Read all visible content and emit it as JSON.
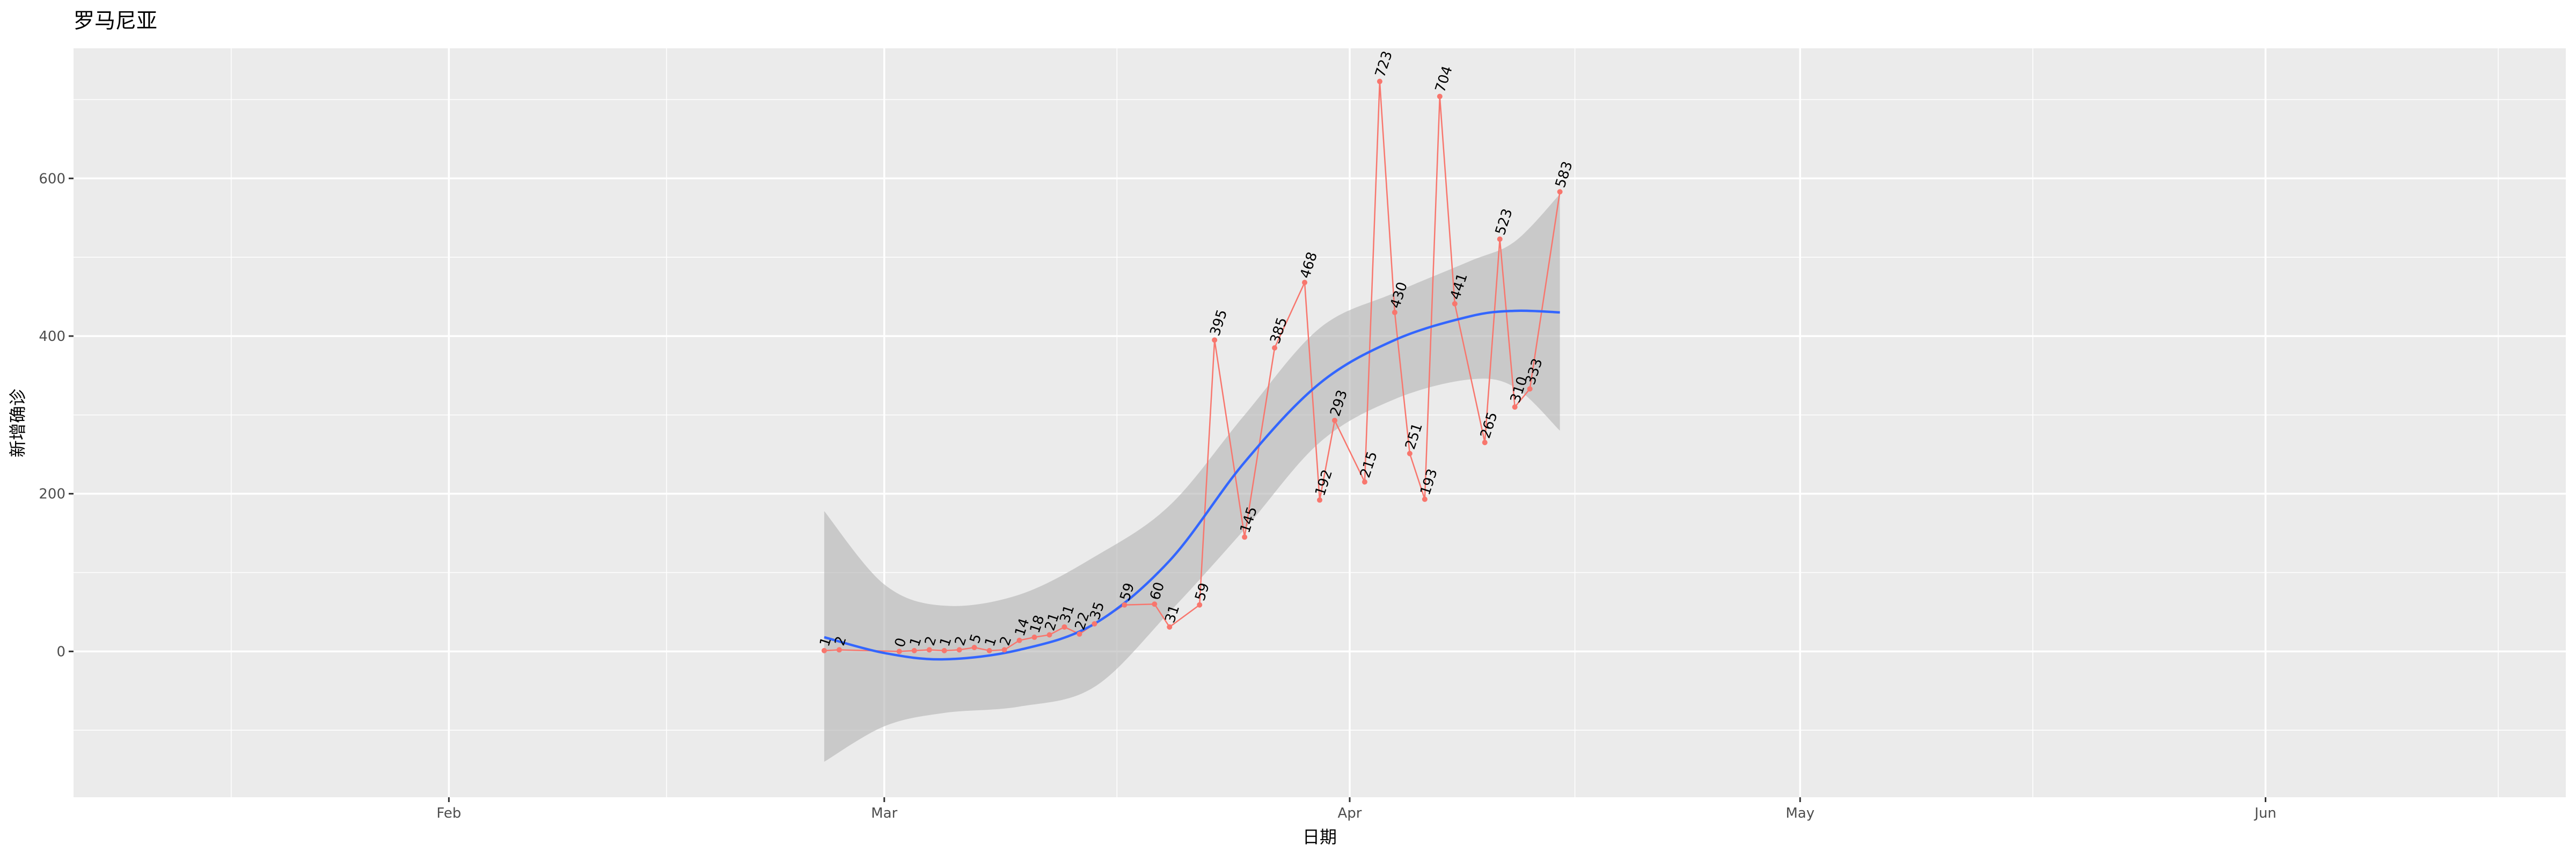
{
  "chart_data": {
    "type": "line",
    "title": "罗马尼亚",
    "xlabel": "日期",
    "ylabel": "新增确诊",
    "x_ticks": [
      "Feb",
      "Mar",
      "Apr",
      "May",
      "Jun"
    ],
    "y_ticks": [
      0,
      200,
      400,
      600
    ],
    "xlim": [
      "2020-01-07",
      "2020-06-21"
    ],
    "ylim": [
      -185,
      765
    ],
    "grid": true,
    "legend": "none",
    "series": [
      {
        "role": "observed",
        "color": "#f8766d",
        "points": [
          {
            "date": "2020-02-26",
            "value": 1
          },
          {
            "date": "2020-02-27",
            "value": 2
          },
          {
            "date": "2020-03-02",
            "value": 0
          },
          {
            "date": "2020-03-03",
            "value": 1
          },
          {
            "date": "2020-03-04",
            "value": 2
          },
          {
            "date": "2020-03-05",
            "value": 1
          },
          {
            "date": "2020-03-06",
            "value": 2
          },
          {
            "date": "2020-03-07",
            "value": 5
          },
          {
            "date": "2020-03-08",
            "value": 1
          },
          {
            "date": "2020-03-09",
            "value": 2
          },
          {
            "date": "2020-03-10",
            "value": 14
          },
          {
            "date": "2020-03-11",
            "value": 18
          },
          {
            "date": "2020-03-12",
            "value": 21
          },
          {
            "date": "2020-03-13",
            "value": 31
          },
          {
            "date": "2020-03-14",
            "value": 22
          },
          {
            "date": "2020-03-15",
            "value": 35
          },
          {
            "date": "2020-03-17",
            "value": 59
          },
          {
            "date": "2020-03-19",
            "value": 60
          },
          {
            "date": "2020-03-20",
            "value": 31
          },
          {
            "date": "2020-03-22",
            "value": 59
          },
          {
            "date": "2020-03-23",
            "value": 395
          },
          {
            "date": "2020-03-25",
            "value": 145
          },
          {
            "date": "2020-03-27",
            "value": 385
          },
          {
            "date": "2020-03-29",
            "value": 468
          },
          {
            "date": "2020-03-30",
            "value": 192
          },
          {
            "date": "2020-03-31",
            "value": 293
          },
          {
            "date": "2020-04-02",
            "value": 215
          },
          {
            "date": "2020-04-03",
            "value": 723
          },
          {
            "date": "2020-04-04",
            "value": 430
          },
          {
            "date": "2020-04-05",
            "value": 251
          },
          {
            "date": "2020-04-06",
            "value": 193
          },
          {
            "date": "2020-04-07",
            "value": 704
          },
          {
            "date": "2020-04-08",
            "value": 441
          },
          {
            "date": "2020-04-10",
            "value": 265
          },
          {
            "date": "2020-04-11",
            "value": 523
          },
          {
            "date": "2020-04-12",
            "value": 310
          },
          {
            "date": "2020-04-13",
            "value": 333
          },
          {
            "date": "2020-04-15",
            "value": 583
          }
        ]
      },
      {
        "role": "smooth",
        "color": "#3366ff",
        "band_color": "#b3b3b3",
        "points": [
          {
            "date": "2020-02-26",
            "value": 18,
            "lower": -140,
            "upper": 178
          },
          {
            "date": "2020-03-01",
            "value": -2,
            "lower": -95,
            "upper": 85
          },
          {
            "date": "2020-03-05",
            "value": -10,
            "lower": -78,
            "upper": 58
          },
          {
            "date": "2020-03-10",
            "value": 2,
            "lower": -70,
            "upper": 72
          },
          {
            "date": "2020-03-15",
            "value": 35,
            "lower": -45,
            "upper": 120
          },
          {
            "date": "2020-03-20",
            "value": 115,
            "lower": 50,
            "upper": 185
          },
          {
            "date": "2020-03-25",
            "value": 240,
            "lower": 155,
            "upper": 300
          },
          {
            "date": "2020-03-30",
            "value": 340,
            "lower": 265,
            "upper": 410
          },
          {
            "date": "2020-04-04",
            "value": 395,
            "lower": 320,
            "upper": 455
          },
          {
            "date": "2020-04-09",
            "value": 425,
            "lower": 345,
            "upper": 495
          },
          {
            "date": "2020-04-12",
            "value": 432,
            "lower": 335,
            "upper": 520
          },
          {
            "date": "2020-04-15",
            "value": 430,
            "lower": 280,
            "upper": 580
          }
        ]
      }
    ]
  }
}
